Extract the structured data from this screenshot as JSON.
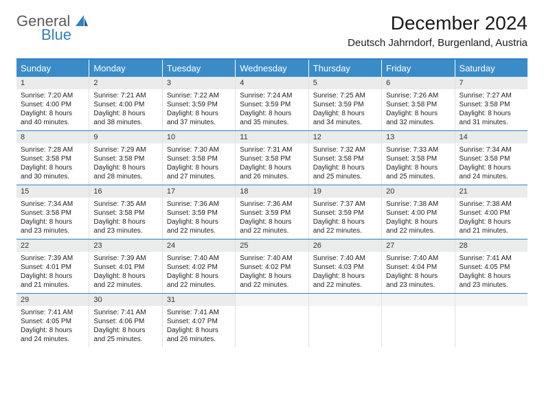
{
  "brand": {
    "general": "General",
    "blue": "Blue"
  },
  "title": "December 2024",
  "location": "Deutsch Jahrndorf, Burgenland, Austria",
  "colors": {
    "header_bg": "#3a8cc9",
    "rule": "#2f7fbf",
    "daynum_bg": "#e9eceb",
    "text": "#222222",
    "white": "#ffffff"
  },
  "daysOfWeek": [
    "Sunday",
    "Monday",
    "Tuesday",
    "Wednesday",
    "Thursday",
    "Friday",
    "Saturday"
  ],
  "weeks": [
    [
      {
        "n": "1",
        "sr": "7:20 AM",
        "ss": "4:00 PM",
        "dl": "8 hours and 40 minutes."
      },
      {
        "n": "2",
        "sr": "7:21 AM",
        "ss": "4:00 PM",
        "dl": "8 hours and 38 minutes."
      },
      {
        "n": "3",
        "sr": "7:22 AM",
        "ss": "3:59 PM",
        "dl": "8 hours and 37 minutes."
      },
      {
        "n": "4",
        "sr": "7:24 AM",
        "ss": "3:59 PM",
        "dl": "8 hours and 35 minutes."
      },
      {
        "n": "5",
        "sr": "7:25 AM",
        "ss": "3:59 PM",
        "dl": "8 hours and 34 minutes."
      },
      {
        "n": "6",
        "sr": "7:26 AM",
        "ss": "3:58 PM",
        "dl": "8 hours and 32 minutes."
      },
      {
        "n": "7",
        "sr": "7:27 AM",
        "ss": "3:58 PM",
        "dl": "8 hours and 31 minutes."
      }
    ],
    [
      {
        "n": "8",
        "sr": "7:28 AM",
        "ss": "3:58 PM",
        "dl": "8 hours and 30 minutes."
      },
      {
        "n": "9",
        "sr": "7:29 AM",
        "ss": "3:58 PM",
        "dl": "8 hours and 28 minutes."
      },
      {
        "n": "10",
        "sr": "7:30 AM",
        "ss": "3:58 PM",
        "dl": "8 hours and 27 minutes."
      },
      {
        "n": "11",
        "sr": "7:31 AM",
        "ss": "3:58 PM",
        "dl": "8 hours and 26 minutes."
      },
      {
        "n": "12",
        "sr": "7:32 AM",
        "ss": "3:58 PM",
        "dl": "8 hours and 25 minutes."
      },
      {
        "n": "13",
        "sr": "7:33 AM",
        "ss": "3:58 PM",
        "dl": "8 hours and 25 minutes."
      },
      {
        "n": "14",
        "sr": "7:34 AM",
        "ss": "3:58 PM",
        "dl": "8 hours and 24 minutes."
      }
    ],
    [
      {
        "n": "15",
        "sr": "7:34 AM",
        "ss": "3:58 PM",
        "dl": "8 hours and 23 minutes."
      },
      {
        "n": "16",
        "sr": "7:35 AM",
        "ss": "3:58 PM",
        "dl": "8 hours and 23 minutes."
      },
      {
        "n": "17",
        "sr": "7:36 AM",
        "ss": "3:59 PM",
        "dl": "8 hours and 22 minutes."
      },
      {
        "n": "18",
        "sr": "7:36 AM",
        "ss": "3:59 PM",
        "dl": "8 hours and 22 minutes."
      },
      {
        "n": "19",
        "sr": "7:37 AM",
        "ss": "3:59 PM",
        "dl": "8 hours and 22 minutes."
      },
      {
        "n": "20",
        "sr": "7:38 AM",
        "ss": "4:00 PM",
        "dl": "8 hours and 22 minutes."
      },
      {
        "n": "21",
        "sr": "7:38 AM",
        "ss": "4:00 PM",
        "dl": "8 hours and 21 minutes."
      }
    ],
    [
      {
        "n": "22",
        "sr": "7:39 AM",
        "ss": "4:01 PM",
        "dl": "8 hours and 21 minutes."
      },
      {
        "n": "23",
        "sr": "7:39 AM",
        "ss": "4:01 PM",
        "dl": "8 hours and 22 minutes."
      },
      {
        "n": "24",
        "sr": "7:40 AM",
        "ss": "4:02 PM",
        "dl": "8 hours and 22 minutes."
      },
      {
        "n": "25",
        "sr": "7:40 AM",
        "ss": "4:02 PM",
        "dl": "8 hours and 22 minutes."
      },
      {
        "n": "26",
        "sr": "7:40 AM",
        "ss": "4:03 PM",
        "dl": "8 hours and 22 minutes."
      },
      {
        "n": "27",
        "sr": "7:40 AM",
        "ss": "4:04 PM",
        "dl": "8 hours and 23 minutes."
      },
      {
        "n": "28",
        "sr": "7:41 AM",
        "ss": "4:05 PM",
        "dl": "8 hours and 23 minutes."
      }
    ],
    [
      {
        "n": "29",
        "sr": "7:41 AM",
        "ss": "4:05 PM",
        "dl": "8 hours and 24 minutes."
      },
      {
        "n": "30",
        "sr": "7:41 AM",
        "ss": "4:06 PM",
        "dl": "8 hours and 25 minutes."
      },
      {
        "n": "31",
        "sr": "7:41 AM",
        "ss": "4:07 PM",
        "dl": "8 hours and 26 minutes."
      },
      {
        "blank": true
      },
      {
        "blank": true
      },
      {
        "blank": true
      },
      {
        "blank": true
      }
    ]
  ],
  "labels": {
    "sunrise": "Sunrise:",
    "sunset": "Sunset:",
    "daylight": "Daylight:"
  }
}
